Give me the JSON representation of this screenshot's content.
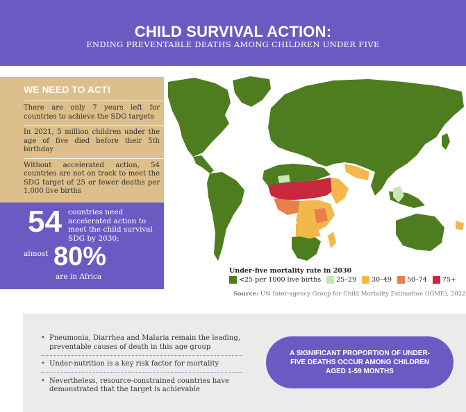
{
  "header": {
    "title": "CHILD SURVIVAL ACTION:",
    "subtitle": "ENDING PREVENTABLE DEATHS AMONG CHILDREN UNDER FIVE"
  },
  "need_to_act": {
    "title": "WE NEED TO ACT!",
    "items": [
      "There are only 7 years left for countries to achieve the SDG targets",
      "In 2021, 5 million children under the age of five died before their 5th birthday",
      "Without accelerated action, 54 countries are not on track to meet the SDG target of 25 or fewer deaths per 1,000 live births"
    ]
  },
  "stats": {
    "countries_number": "54",
    "countries_text": "countries need accelerated action to meet the child survival SDG by 2030;",
    "almost_label": "almost",
    "percent": "80%",
    "africa_text": "are in Africa"
  },
  "map": {
    "legend_title": "Under-five mortality rate in 2030",
    "legend": [
      {
        "label": "<25 per 1000 live births",
        "color": "#4e7d1f"
      },
      {
        "label": "25–29",
        "color": "#c7e6b3"
      },
      {
        "label": "30–49",
        "color": "#f2b84b"
      },
      {
        "label": "50–74",
        "color": "#e8804a"
      },
      {
        "label": "75+",
        "color": "#c8283c"
      }
    ],
    "source_label": "Source:",
    "source_text": "UN Inter-agency Group for Child Mortality Estimation (IGME), 2022"
  },
  "bottom": {
    "bullets": [
      "Pneumonia, Diarrhea and Malaria remain the leading, preventable causes of death in this age group",
      "Under-nutrition is a key risk factor for mortality",
      "Nevertheless, resource-constrained countries have demonstrated that the target is achievable"
    ],
    "callout": "A SIGNIFICANT PROPORTION OF UNDER-FIVE DEATHS OCCUR AMONG CHILDREN AGED 1-59 MONTHS"
  }
}
